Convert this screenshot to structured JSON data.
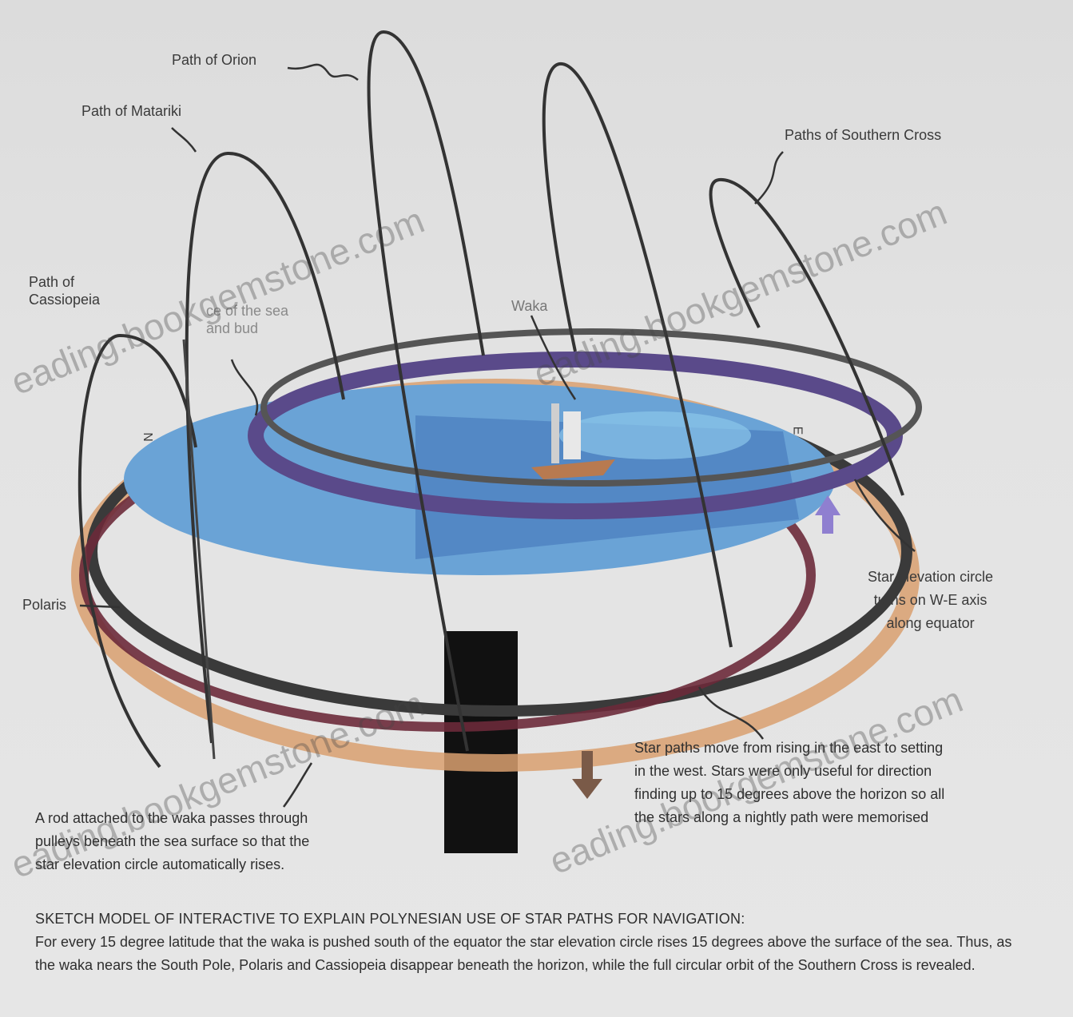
{
  "labels": {
    "path_of_orion": "Path of Orion",
    "path_of_matariki": "Path of Matariki",
    "paths_of_southern_cross": "Paths of Southern Cross",
    "path_of_cassiopeia": "Path of\nCassiopeia",
    "surface_of_sea": "ce of the sea\nand bud",
    "waka": "Waka",
    "polaris": "Polaris",
    "n_marker": "N",
    "e_marker": "E",
    "star_elevation_circle": "Star elevation circle\nturns on W-E axis\nalong equator"
  },
  "notes": {
    "star_paths": "Star paths move from rising in the east to setting\nin the west. Stars were only useful for direction\nfinding up to 15 degrees above the horizon so all\nthe stars along a nightly path were memorised",
    "rod": "A rod attached to the waka passes through\npulleys beneath the sea surface so that the\nstar elevation circle automatically rises."
  },
  "caption": {
    "heading": "SKETCH MODEL OF INTERACTIVE TO EXPLAIN POLYNESIAN USE OF STAR PATHS FOR NAVIGATION:",
    "body": "For every 15 degree latitude that the waka is pushed south of the equator the star elevation circle rises 15 degrees above the surface of the sea. Thus, as the waka nears the South Pole, Polaris and Cassiopeia disappear beneath the horizon, while the full circular orbit of the Southern Cross is revealed."
  },
  "watermark": "eading.bookgemstone.com",
  "colors": {
    "sea": "#6aa3d6",
    "sea_dark": "#3f73b8",
    "ring_dark": "#3a3a3a",
    "ring_purple": "#5a4a8a",
    "ring_maroon": "#6b2a3a",
    "ring_orange": "#d9a070",
    "arrow_purple": "#8f7fd0",
    "arrow_brown": "#7a5a48",
    "stand": "#111111"
  }
}
